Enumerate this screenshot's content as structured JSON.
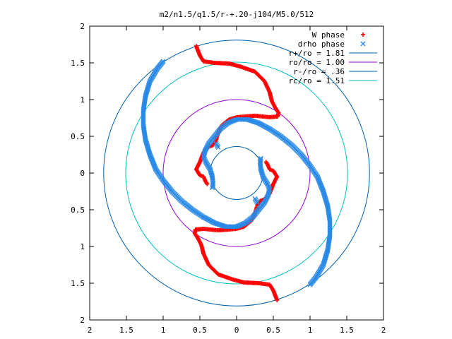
{
  "chart_data": {
    "type": "scatter",
    "title": "m2/n1.5/q1.5/r-+.20-j104/M5.0/512",
    "xlabel": "",
    "ylabel": "",
    "xlim": [
      -2,
      2
    ],
    "ylim": [
      -2,
      2
    ],
    "grid": false,
    "legend_position": "top-right",
    "x_ticks": [
      -2,
      -1.5,
      -1,
      -0.5,
      0,
      0.5,
      1,
      1.5,
      2
    ],
    "y_ticks": [
      -2,
      -1.5,
      -1,
      -0.5,
      0,
      0.5,
      1,
      1.5,
      2
    ],
    "x_tick_labels": [
      "2",
      "1.5",
      "1",
      "0.5",
      "0",
      "0.5",
      "1",
      "1.5",
      "2"
    ],
    "y_tick_labels": [
      "2",
      "1.5",
      "1",
      "0.5",
      "0",
      "0.5",
      "1",
      "1.5",
      "2"
    ],
    "circles": [
      {
        "name": "r+/ro = 1.81",
        "radius": 1.81,
        "color": "#0060ad"
      },
      {
        "name": "ro/ro = 1.00",
        "radius": 1.0,
        "color": "#9400d3"
      },
      {
        "name": "r-/ro = .36",
        "radius": 0.36,
        "color": "#0060ad"
      },
      {
        "name": "rc/ro = 1.51",
        "radius": 1.51,
        "color": "#00c0c0"
      }
    ],
    "series": [
      {
        "name": "W phase",
        "marker": "plus",
        "color": "#ff0000",
        "points": [
          [
            -0.55,
            1.73
          ],
          [
            -0.5,
            1.6
          ],
          [
            -0.45,
            1.52
          ],
          [
            -0.3,
            1.5
          ],
          [
            -0.1,
            1.49
          ],
          [
            0.05,
            1.45
          ],
          [
            0.25,
            1.38
          ],
          [
            0.38,
            1.25
          ],
          [
            0.45,
            1.1
          ],
          [
            0.48,
            0.98
          ],
          [
            0.52,
            0.9
          ],
          [
            0.57,
            0.82
          ],
          [
            0.56,
            0.77
          ],
          [
            0.45,
            0.76
          ],
          [
            0.35,
            0.77
          ],
          [
            0.25,
            0.78
          ],
          [
            0.12,
            0.77
          ],
          [
            0.0,
            0.76
          ],
          [
            -0.1,
            0.73
          ],
          [
            -0.2,
            0.65
          ],
          [
            -0.25,
            0.55
          ],
          [
            -0.28,
            0.45
          ],
          [
            -0.32,
            0.38
          ],
          [
            -0.4,
            0.35
          ],
          [
            -0.45,
            0.28
          ],
          [
            -0.5,
            0.15
          ],
          [
            -0.55,
            0.05
          ],
          [
            -0.5,
            -0.03
          ],
          [
            -0.45,
            -0.05
          ],
          [
            -0.42,
            -0.12
          ],
          [
            -0.4,
            -0.15
          ],
          [
            0.55,
            -1.73
          ],
          [
            0.5,
            -1.6
          ],
          [
            0.45,
            -1.52
          ],
          [
            0.3,
            -1.5
          ],
          [
            0.1,
            -1.49
          ],
          [
            -0.05,
            -1.45
          ],
          [
            -0.25,
            -1.38
          ],
          [
            -0.38,
            -1.25
          ],
          [
            -0.45,
            -1.1
          ],
          [
            -0.48,
            -0.98
          ],
          [
            -0.52,
            -0.9
          ],
          [
            -0.57,
            -0.82
          ],
          [
            -0.56,
            -0.77
          ],
          [
            -0.45,
            -0.76
          ],
          [
            -0.35,
            -0.77
          ],
          [
            -0.25,
            -0.78
          ],
          [
            -0.12,
            -0.77
          ],
          [
            0.0,
            -0.76
          ],
          [
            0.1,
            -0.73
          ],
          [
            0.2,
            -0.65
          ],
          [
            0.25,
            -0.55
          ],
          [
            0.28,
            -0.45
          ],
          [
            0.32,
            -0.38
          ],
          [
            0.4,
            -0.35
          ],
          [
            0.45,
            -0.28
          ],
          [
            0.5,
            -0.15
          ],
          [
            0.55,
            -0.05
          ],
          [
            0.5,
            0.03
          ],
          [
            0.45,
            0.05
          ],
          [
            0.42,
            0.12
          ],
          [
            0.4,
            0.15
          ]
        ]
      },
      {
        "name": "drho phase",
        "marker": "cross",
        "color": "#2a8ae6",
        "points": [
          [
            -1.0,
            1.52
          ],
          [
            -1.08,
            1.42
          ],
          [
            -1.18,
            1.25
          ],
          [
            -1.24,
            1.05
          ],
          [
            -1.27,
            0.85
          ],
          [
            -1.27,
            0.65
          ],
          [
            -1.24,
            0.45
          ],
          [
            -1.18,
            0.25
          ],
          [
            -1.1,
            0.05
          ],
          [
            -1.0,
            -0.1
          ],
          [
            -0.88,
            -0.25
          ],
          [
            -0.75,
            -0.38
          ],
          [
            -0.6,
            -0.5
          ],
          [
            -0.45,
            -0.6
          ],
          [
            -0.3,
            -0.68
          ],
          [
            -0.15,
            -0.73
          ],
          [
            0.0,
            -0.73
          ],
          [
            0.12,
            -0.68
          ],
          [
            0.22,
            -0.6
          ],
          [
            0.3,
            -0.5
          ],
          [
            0.38,
            -0.4
          ],
          [
            0.43,
            -0.3
          ],
          [
            0.45,
            -0.22
          ],
          [
            0.42,
            -0.15
          ],
          [
            0.36,
            -0.05
          ],
          [
            0.33,
            0.05
          ],
          [
            0.32,
            0.15
          ],
          [
            0.33,
            0.2
          ],
          [
            1.0,
            -1.52
          ],
          [
            1.08,
            -1.42
          ],
          [
            1.18,
            -1.25
          ],
          [
            1.24,
            -1.05
          ],
          [
            1.27,
            -0.85
          ],
          [
            1.27,
            -0.65
          ],
          [
            1.24,
            -0.45
          ],
          [
            1.18,
            -0.25
          ],
          [
            1.1,
            -0.05
          ],
          [
            1.0,
            0.1
          ],
          [
            0.88,
            0.25
          ],
          [
            0.75,
            0.38
          ],
          [
            0.6,
            0.5
          ],
          [
            0.45,
            0.6
          ],
          [
            0.3,
            0.68
          ],
          [
            0.15,
            0.73
          ],
          [
            0.0,
            0.73
          ],
          [
            -0.12,
            0.68
          ],
          [
            -0.22,
            0.6
          ],
          [
            -0.3,
            0.5
          ],
          [
            -0.38,
            0.4
          ],
          [
            -0.43,
            0.3
          ],
          [
            -0.45,
            0.22
          ],
          [
            -0.42,
            0.15
          ],
          [
            -0.36,
            0.05
          ],
          [
            -0.33,
            -0.05
          ],
          [
            -0.32,
            -0.15
          ],
          [
            -0.33,
            -0.2
          ],
          [
            -0.25,
            0.35
          ],
          [
            -0.28,
            0.4
          ],
          [
            0.25,
            -0.35
          ],
          [
            0.28,
            -0.4
          ]
        ]
      }
    ]
  }
}
